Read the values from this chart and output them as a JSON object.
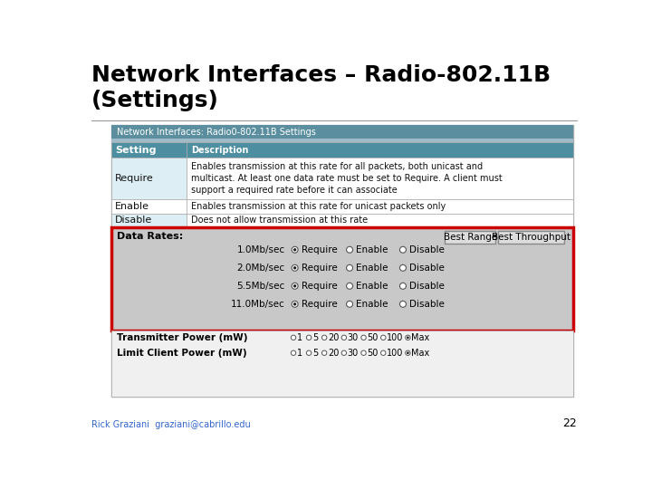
{
  "title_line1": "Network Interfaces – Radio-802.11B",
  "title_line2": "(Settings)",
  "title_fontsize": 18,
  "bg_color": "#ffffff",
  "footer_text": "Rick Graziani  graziani@cabrillo.edu",
  "footer_color": "#3366cc",
  "footer_page": "22",
  "panel_title": "Network Interfaces: Radio0-802.11B Settings",
  "panel_title_bg": "#5b8fa0",
  "panel_title_fg": "#ffffff",
  "table_header_bg": "#4d8fa0",
  "table_header_fg": "#ffffff",
  "table_row_require_bg": "#ddeef5",
  "table_row_white_bg": "#ffffff",
  "table_border": "#aaaaaa",
  "data_rates_box_border": "#cc0000",
  "data_rates_bg": "#c8c8c8",
  "panel_bg": "#e8e8e8",
  "settings": [
    [
      "Setting",
      "Description",
      true
    ],
    [
      "Require",
      "Enables transmission at this rate for all packets, both unicast and\nmulticast. At least one data rate must be set to Require. A client must\nsupport a required rate before it can associate",
      false
    ],
    [
      "Enable",
      "Enables transmission at this rate for unicast packets only",
      false
    ],
    [
      "Disable",
      "Does not allow transmission at this rate",
      false
    ]
  ],
  "data_rates": [
    "1.0Mb/sec",
    "2.0Mb/sec",
    "5.5Mb/sec",
    "11.0Mb/sec"
  ],
  "radio_options": [
    "Require",
    "Enable",
    "Disable"
  ],
  "selected_radio": "Require",
  "power_label1": "Transmitter Power (mW)",
  "power_label2": "Limit Client Power (mW)",
  "power_options": [
    "1",
    "5",
    "20",
    "30",
    "50",
    "100",
    "Max"
  ],
  "power_selected": "Max"
}
